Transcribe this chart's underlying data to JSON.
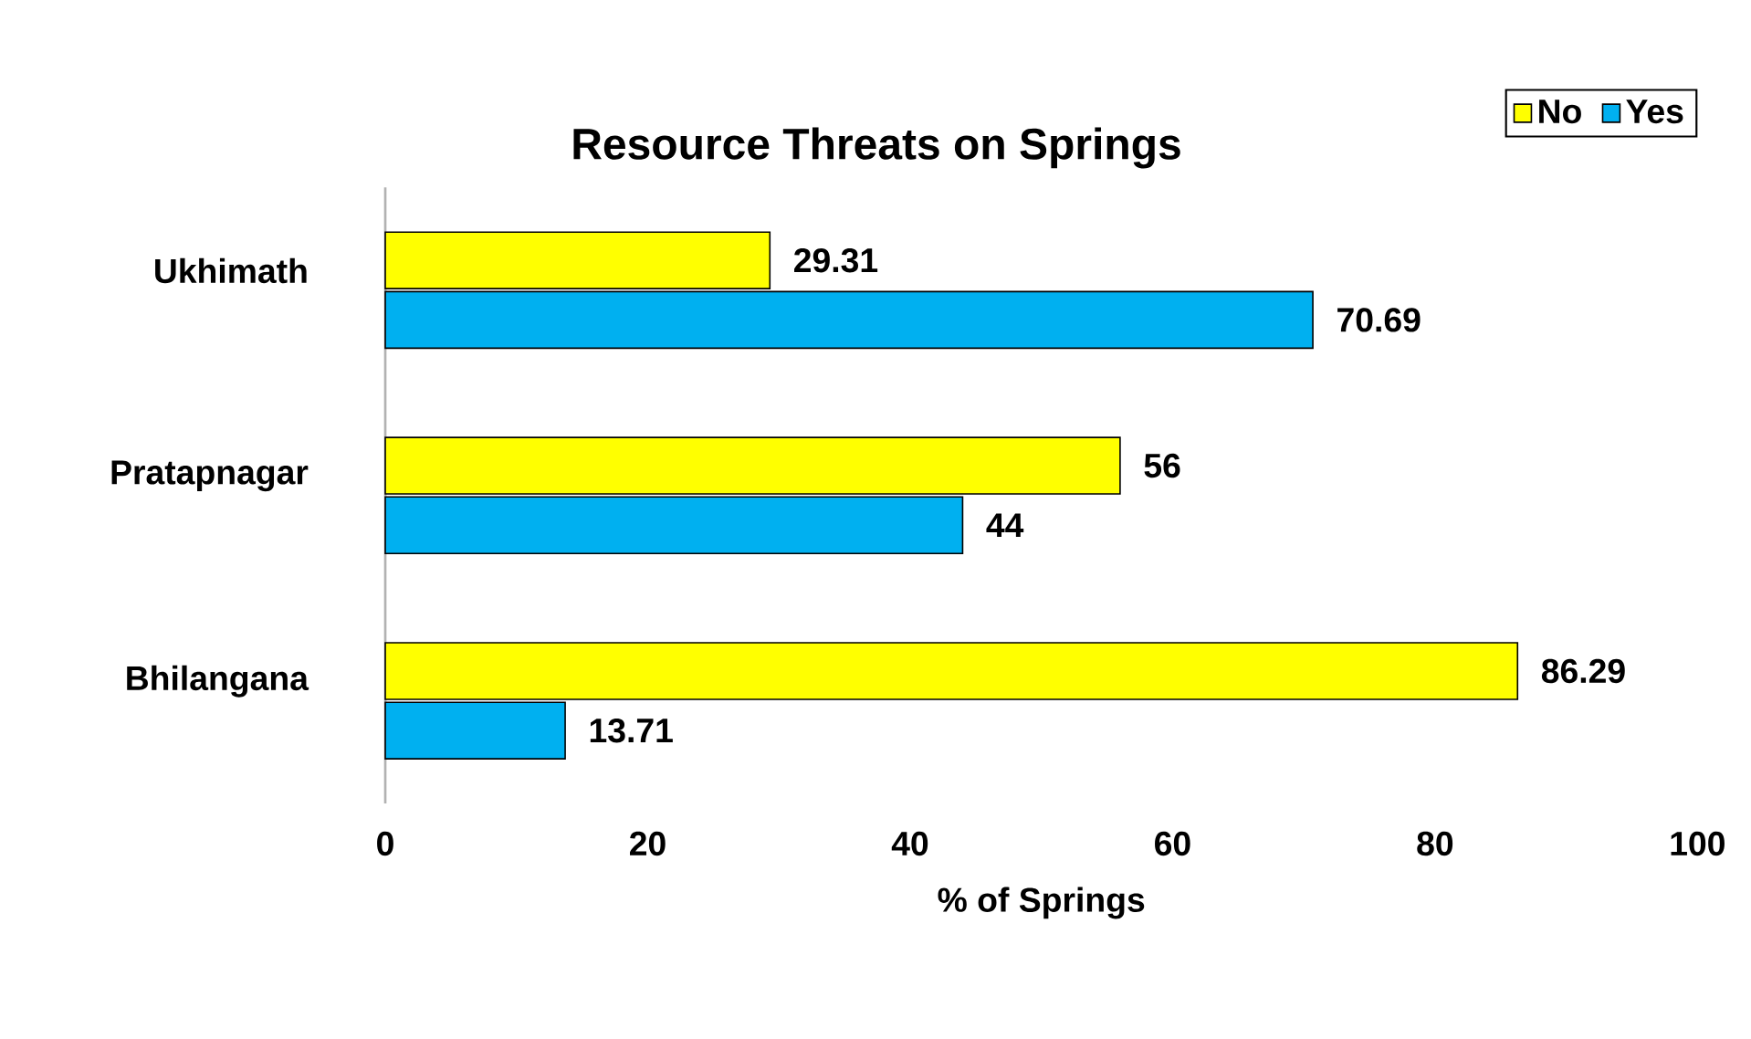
{
  "chart_data": {
    "type": "bar",
    "orientation": "horizontal",
    "title": "Resource Threats on Springs",
    "xlabel": "% of Springs",
    "categories": [
      "Ukhimath",
      "Pratapnagar",
      "Bhilangana"
    ],
    "series": [
      {
        "name": "No",
        "color": "#ffff00",
        "values": [
          29.31,
          56,
          86.29
        ]
      },
      {
        "name": "Yes",
        "color": "#00b0f0",
        "values": [
          70.69,
          44,
          13.71
        ]
      }
    ],
    "xlim": [
      0,
      100
    ],
    "xticks": [
      0,
      20,
      40,
      60,
      80,
      100
    ],
    "data_labels": true,
    "legend": "top right",
    "grid": false
  }
}
